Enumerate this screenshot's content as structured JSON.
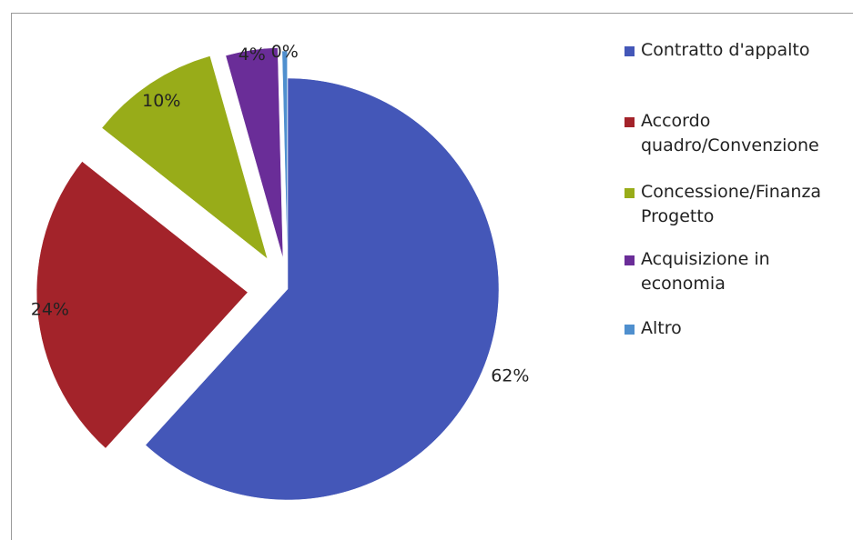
{
  "chart_data": {
    "type": "pie",
    "slices": [
      {
        "label": "Contratto d'appalto",
        "value": 62,
        "display": "62%",
        "color": "#4457b8"
      },
      {
        "label": "Accordo quadro/Convenzione",
        "value": 24,
        "display": "24%",
        "color": "#a3232a"
      },
      {
        "label": "Concessione/Finanza Progetto",
        "value": 10,
        "display": "10%",
        "color": "#98ac19"
      },
      {
        "label": "Acquisizione in economia",
        "value": 4,
        "display": "4%",
        "color": "#6a2d98"
      },
      {
        "label": "Altro",
        "value": 0.4,
        "display": "0%",
        "color": "#4f8fce"
      }
    ],
    "exploded": true,
    "legend_position": "right",
    "legend": [
      {
        "lines": [
          "Contratto d'appalto"
        ]
      },
      {
        "lines": [
          "Accordo",
          "quadro/Convenzione"
        ]
      },
      {
        "lines": [
          "Concessione/Finanza",
          "Progetto"
        ]
      },
      {
        "lines": [
          "Acquisizione in",
          "economia"
        ]
      },
      {
        "lines": [
          "Altro"
        ]
      }
    ]
  }
}
